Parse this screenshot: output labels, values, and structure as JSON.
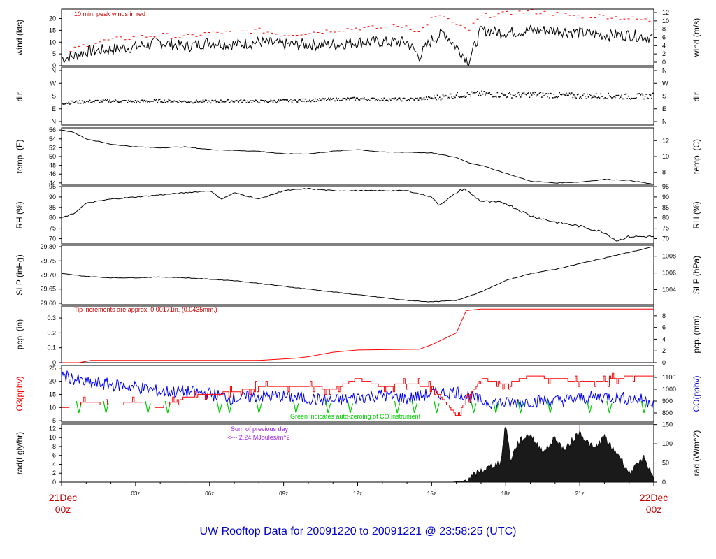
{
  "footer": {
    "title": "UW Rooftop Data for 20091220  to  20091221 @ 23:58:25  (UTC)"
  },
  "time_axis": {
    "start_label_1": "21Dec",
    "start_label_2": "00z",
    "end_label_1": "22Dec",
    "end_label_2": "00z",
    "ticks": [
      "03z",
      "06z",
      "09z",
      "12z",
      "15z",
      "18z",
      "21z"
    ]
  },
  "colors": {
    "red": "#ff0000",
    "blue": "#0000ff",
    "green": "#00cc00",
    "purple": "#a020f0",
    "black": "#000000",
    "darkred": "#cc0000",
    "navy": "#0000cc"
  },
  "chart_data": [
    {
      "id": "wind",
      "type": "line",
      "ylabel": "wind (kts)",
      "ylabel2": "wind (m/s)",
      "annotation": "10 min. peak winds in red",
      "ylim": [
        0,
        24
      ],
      "yticks": [
        0,
        5,
        10,
        15,
        20
      ],
      "yticks2": [
        0,
        2,
        4,
        6,
        8,
        10,
        12
      ],
      "x": [
        0,
        0.5,
        1,
        2,
        3,
        4,
        5,
        6,
        7,
        8,
        9,
        10,
        11,
        12,
        13,
        14,
        14.5,
        15,
        15.5,
        16,
        16.5,
        17,
        18,
        19,
        20,
        21,
        22,
        23,
        24
      ],
      "series": [
        {
          "values": [
            3,
            4,
            6,
            7,
            8,
            10,
            8,
            10,
            9,
            10,
            9,
            9,
            9,
            10,
            10,
            10,
            4,
            11,
            14,
            8,
            2,
            15,
            14,
            15,
            15,
            14,
            13,
            13,
            12
          ]
        },
        {
          "color": "red",
          "values": [
            5,
            7,
            9,
            11,
            12,
            13,
            12,
            14,
            14,
            15,
            13,
            14,
            15,
            16,
            16,
            17,
            14,
            20,
            21,
            17,
            15,
            21,
            22,
            23,
            22,
            21,
            21,
            20,
            19
          ]
        }
      ]
    },
    {
      "id": "dir",
      "type": "scatter",
      "ylabel": "dir.",
      "ylabel2": "dir.",
      "ycat": [
        "N",
        "E",
        "S",
        "W",
        "N"
      ],
      "x": [
        0,
        1,
        2,
        3,
        4,
        5,
        6,
        7,
        8,
        9,
        10,
        11,
        12,
        13,
        14,
        15,
        16,
        17,
        18,
        19,
        20,
        21,
        22,
        23,
        24
      ],
      "values": [
        135,
        145,
        150,
        145,
        150,
        145,
        145,
        150,
        145,
        150,
        155,
        160,
        165,
        160,
        160,
        170,
        190,
        200,
        190,
        195,
        190,
        185,
        185,
        180,
        185
      ]
    },
    {
      "id": "temp",
      "type": "line",
      "ylabel": "temp. (F)",
      "ylabel2": "temp. (C)",
      "ylim": [
        43.5,
        56.5
      ],
      "yticks": [
        44,
        46,
        48,
        50,
        52,
        54,
        56
      ],
      "yticks2": [
        8,
        10,
        12
      ],
      "x": [
        0,
        0.5,
        1,
        2,
        3,
        4,
        5,
        6,
        7,
        8,
        9,
        10,
        11,
        12,
        13,
        14,
        15,
        16,
        16.5,
        17,
        18,
        19,
        20,
        21,
        22,
        23,
        24
      ],
      "values": [
        56,
        55.5,
        54,
        52.8,
        52.2,
        52,
        52.2,
        51.6,
        51.4,
        51.2,
        50.6,
        50.6,
        51.2,
        51.6,
        51,
        51,
        50.8,
        49.8,
        48.6,
        48,
        46.2,
        44.4,
        44,
        44.2,
        44.8,
        44.6,
        43.7
      ]
    },
    {
      "id": "rh",
      "type": "line",
      "ylabel": "RH (%)",
      "ylabel2": "RH (%)",
      "ylim": [
        67.5,
        95
      ],
      "yticks": [
        70,
        75,
        80,
        85,
        90,
        95
      ],
      "yticks2": [
        70,
        75,
        80,
        85,
        90,
        95
      ],
      "x": [
        0,
        0.5,
        1,
        2,
        3,
        4,
        5,
        6,
        6.5,
        7,
        8,
        9,
        10,
        11,
        12,
        13,
        14,
        15,
        15.3,
        16,
        16.3,
        17,
        18,
        19,
        20,
        21,
        22,
        22.5,
        23,
        24
      ],
      "values": [
        80,
        82,
        87,
        89,
        90,
        91,
        92,
        93,
        89,
        92,
        89,
        93,
        94,
        93,
        93,
        93,
        93,
        90,
        86,
        92,
        94,
        88,
        87,
        81,
        78,
        76,
        73,
        69,
        71,
        71
      ]
    },
    {
      "id": "slp",
      "type": "line",
      "ylabel": "SLP (inHg)",
      "ylabel2": "SLP (hPa)",
      "ylim": [
        29.595,
        29.805
      ],
      "yticks": [
        29.6,
        29.65,
        29.7,
        29.75,
        29.8
      ],
      "ytick_labels": [
        "29.60",
        "29.65",
        "29.70",
        "29.75",
        "29.80"
      ],
      "yticks2_hpa": [
        1004,
        1006,
        1008
      ],
      "x": [
        0,
        1,
        2,
        3,
        4,
        5,
        6,
        7,
        8,
        9,
        10,
        11,
        12,
        13,
        14,
        15,
        16,
        17,
        18,
        19,
        20,
        21,
        22,
        23,
        24
      ],
      "values": [
        29.705,
        29.695,
        29.69,
        29.69,
        29.693,
        29.69,
        29.685,
        29.68,
        29.67,
        29.66,
        29.65,
        29.64,
        29.63,
        29.62,
        29.61,
        29.605,
        29.61,
        29.64,
        29.68,
        29.705,
        29.72,
        29.74,
        29.76,
        29.78,
        29.8
      ]
    },
    {
      "id": "pcp",
      "type": "line",
      "ylabel": "pcp. (in)",
      "ylabel2": "pcp. (mm)",
      "annotation": "Tip increments are approx. 0.00171in. (0.0435mm.)",
      "ylim": [
        0,
        0.38
      ],
      "yticks": [
        0,
        0.1,
        0.2,
        0.3
      ],
      "ytick_labels": [
        "0",
        "0.1",
        "0.2",
        "0.3"
      ],
      "yticks2": [
        0,
        2,
        4,
        6,
        8
      ],
      "x": [
        0,
        0.7,
        1.2,
        3,
        5,
        8,
        9.5,
        10,
        11,
        12,
        14.5,
        15,
        16,
        16.4,
        17,
        24
      ],
      "values": [
        0,
        0,
        0.015,
        0.015,
        0.015,
        0.015,
        0.03,
        0.04,
        0.07,
        0.085,
        0.09,
        0.12,
        0.2,
        0.35,
        0.36,
        0.36
      ]
    },
    {
      "id": "chem",
      "type": "line",
      "ylabel": "O3(ppbv)",
      "ylabel2": "CO(ppbv)",
      "annotation": "Green indicates auto-zeroing of CO instrument",
      "ylim": [
        4.5,
        26
      ],
      "yticks": [
        5,
        10,
        15,
        20,
        25
      ],
      "yticks2": [
        800,
        900,
        1000,
        1100
      ],
      "x": [
        0,
        1,
        2,
        3,
        4,
        5,
        6,
        7,
        8,
        9,
        10,
        11,
        12,
        13,
        14,
        15,
        16,
        17,
        18,
        19,
        20,
        21,
        22,
        23,
        24
      ],
      "series": [
        {
          "name": "O3",
          "color": "red",
          "values": [
            10,
            12,
            11,
            12,
            10,
            14,
            15,
            16,
            18,
            18,
            18,
            17,
            21,
            18,
            19,
            18,
            7,
            21,
            19,
            22,
            21,
            20,
            20,
            22,
            22
          ]
        },
        {
          "name": "CO",
          "color": "blue",
          "values": [
            1120,
            1050,
            1040,
            1020,
            980,
            980,
            960,
            920,
            940,
            940,
            920,
            900,
            930,
            950,
            920,
            960,
            980,
            900,
            880,
            900,
            900,
            920,
            940,
            920,
            900
          ]
        }
      ]
    },
    {
      "id": "rad",
      "type": "area",
      "ylabel": "rad(Lgly/hr)",
      "ylabel2": "rad (W/m^2)",
      "annotation_1": "Sum of previous day",
      "annotation_2": "<--- 2.24 MJoules/m^2",
      "ylim": [
        0,
        13
      ],
      "yticks": [
        0,
        2,
        4,
        6,
        8,
        10,
        12
      ],
      "yticks2": [
        0,
        50,
        100,
        150
      ],
      "x": [
        0,
        15,
        15.8,
        16.3,
        16.7,
        17,
        17.4,
        17.8,
        18,
        18.2,
        18.5,
        19,
        19.3,
        19.6,
        20,
        20.4,
        20.7,
        21,
        21.3,
        21.6,
        22,
        22.3,
        22.6,
        23,
        23.3,
        23.6,
        24
      ],
      "values": [
        0,
        0,
        0,
        0.3,
        1.5,
        2.5,
        3.5,
        4.5,
        13,
        5,
        9,
        10.8,
        8,
        7,
        10,
        7,
        9.5,
        11.2,
        9,
        7.5,
        10.2,
        7.5,
        6,
        2,
        3.5,
        5.5,
        1
      ]
    }
  ]
}
